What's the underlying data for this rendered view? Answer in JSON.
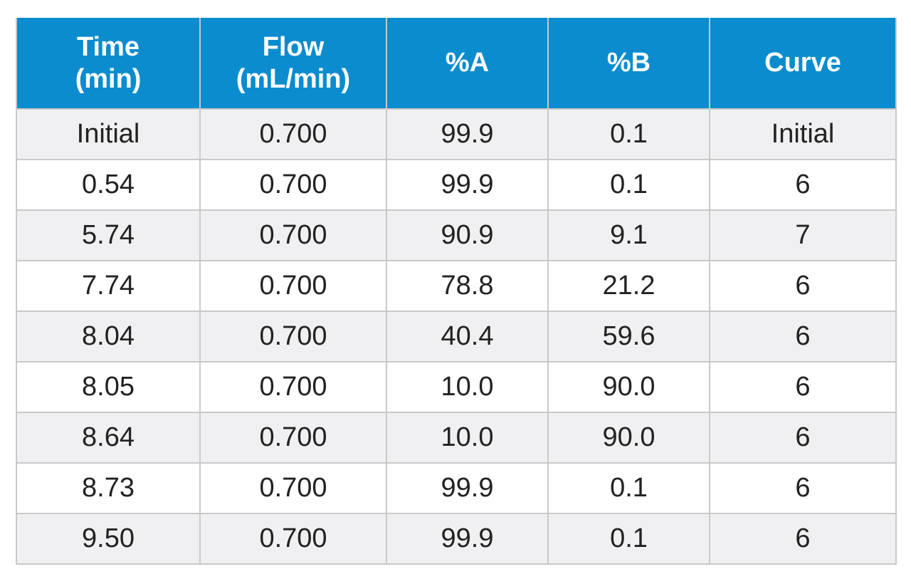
{
  "table": {
    "headers": [
      {
        "line1": "Time",
        "line2": "(min)"
      },
      {
        "line1": "Flow",
        "line2": "(mL/min)"
      },
      {
        "line1": "%A",
        "line2": ""
      },
      {
        "line1": "%B",
        "line2": ""
      },
      {
        "line1": "Curve",
        "line2": ""
      }
    ],
    "rows": [
      [
        "Initial",
        "0.700",
        "99.9",
        "0.1",
        "Initial"
      ],
      [
        "0.54",
        "0.700",
        "99.9",
        "0.1",
        "6"
      ],
      [
        "5.74",
        "0.700",
        "90.9",
        "9.1",
        "7"
      ],
      [
        "7.74",
        "0.700",
        "78.8",
        "21.2",
        "6"
      ],
      [
        "8.04",
        "0.700",
        "40.4",
        "59.6",
        "6"
      ],
      [
        "8.05",
        "0.700",
        "10.0",
        "90.0",
        "6"
      ],
      [
        "8.64",
        "0.700",
        "10.0",
        "90.0",
        "6"
      ],
      [
        "8.73",
        "0.700",
        "99.9",
        "0.1",
        "6"
      ],
      [
        "9.50",
        "0.700",
        "99.9",
        "0.1",
        "6"
      ]
    ]
  },
  "colors": {
    "header_background": "#0a8ccf",
    "header_text": "#ffffff",
    "row_shaded": "#f0f0f2",
    "row_plain": "#ffffff",
    "grid_line": "#c9c9c9"
  }
}
